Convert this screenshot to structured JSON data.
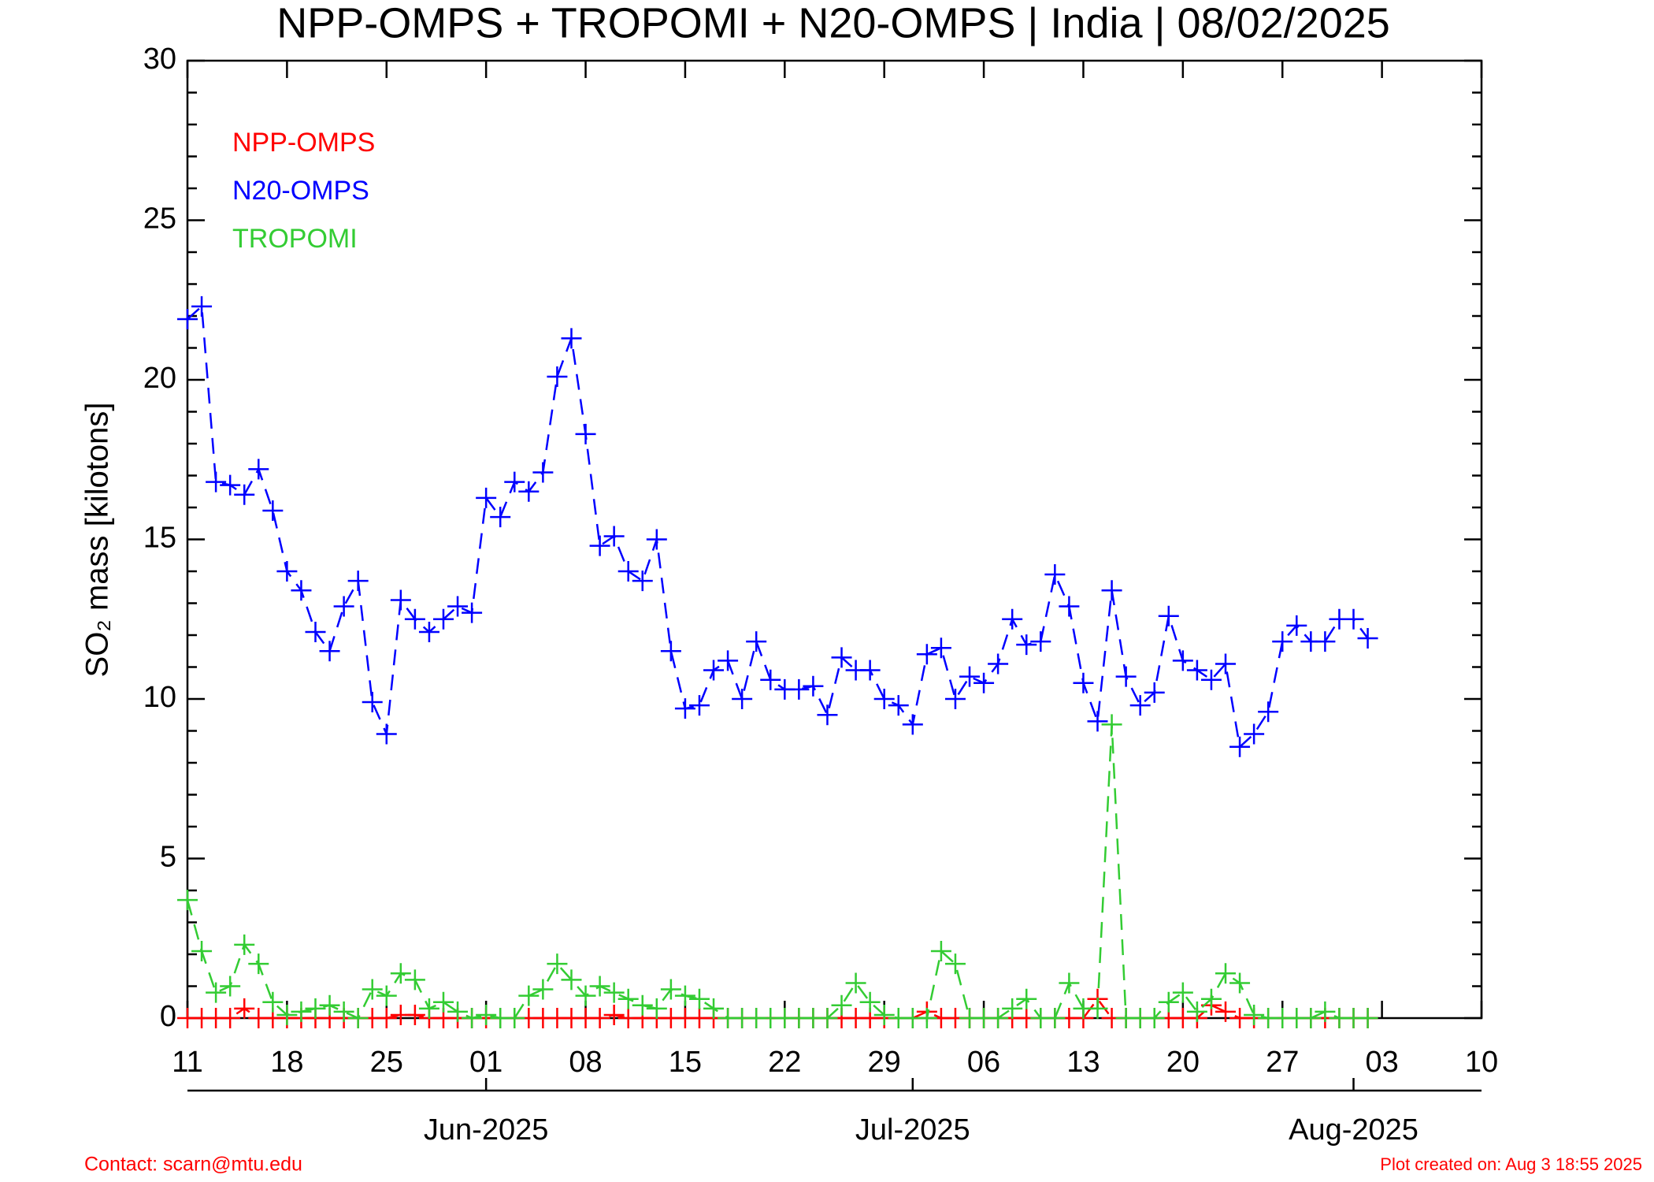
{
  "chart_data": {
    "type": "line",
    "title": "NPP-OMPS + TROPOMI + N20-OMPS | India | 08/02/2025",
    "y_label": "SO₂ mass [kilotons]",
    "x": [
      "2025-05-11",
      "2025-05-12",
      "2025-05-13",
      "2025-05-14",
      "2025-05-15",
      "2025-05-16",
      "2025-05-17",
      "2025-05-18",
      "2025-05-19",
      "2025-05-20",
      "2025-05-21",
      "2025-05-22",
      "2025-05-23",
      "2025-05-24",
      "2025-05-25",
      "2025-05-26",
      "2025-05-27",
      "2025-05-28",
      "2025-05-29",
      "2025-05-30",
      "2025-05-31",
      "2025-06-01",
      "2025-06-02",
      "2025-06-03",
      "2025-06-04",
      "2025-06-05",
      "2025-06-06",
      "2025-06-07",
      "2025-06-08",
      "2025-06-09",
      "2025-06-10",
      "2025-06-11",
      "2025-06-12",
      "2025-06-13",
      "2025-06-14",
      "2025-06-15",
      "2025-06-16",
      "2025-06-17",
      "2025-06-18",
      "2025-06-19",
      "2025-06-20",
      "2025-06-21",
      "2025-06-22",
      "2025-06-23",
      "2025-06-24",
      "2025-06-25",
      "2025-06-26",
      "2025-06-27",
      "2025-06-28",
      "2025-06-29",
      "2025-06-30",
      "2025-07-01",
      "2025-07-02",
      "2025-07-03",
      "2025-07-04",
      "2025-07-05",
      "2025-07-06",
      "2025-07-07",
      "2025-07-08",
      "2025-07-09",
      "2025-07-10",
      "2025-07-11",
      "2025-07-12",
      "2025-07-13",
      "2025-07-14",
      "2025-07-15",
      "2025-07-16",
      "2025-07-17",
      "2025-07-18",
      "2025-07-19",
      "2025-07-20",
      "2025-07-21",
      "2025-07-22",
      "2025-07-23",
      "2025-07-24",
      "2025-07-25",
      "2025-07-26",
      "2025-07-27",
      "2025-07-28",
      "2025-07-29",
      "2025-07-30",
      "2025-07-31",
      "2025-08-01",
      "2025-08-02"
    ],
    "series": [
      {
        "name": "NPP-OMPS",
        "color": "#ff0000",
        "values": [
          0,
          0,
          0,
          0,
          0.3,
          0,
          0,
          0,
          0,
          0,
          0,
          0,
          0,
          0,
          0,
          0.1,
          0.1,
          0,
          0,
          0,
          0,
          0,
          0,
          0,
          0,
          0,
          0,
          0,
          0,
          0,
          0.1,
          0,
          0,
          0,
          0,
          0,
          0,
          0,
          0,
          0,
          0,
          0,
          0,
          0,
          0,
          0,
          0,
          0,
          0,
          0,
          0,
          0,
          0.2,
          0,
          0,
          0,
          0,
          0,
          0,
          0,
          0,
          0,
          0,
          0,
          0.6,
          0,
          0,
          0,
          0,
          0,
          0,
          0,
          0.4,
          0.2,
          0,
          0,
          0,
          0,
          0,
          0,
          0,
          0,
          0,
          0
        ]
      },
      {
        "name": "N20-OMPS",
        "color": "#0000ff",
        "values": [
          21.9,
          22.3,
          16.8,
          16.7,
          16.4,
          17.2,
          15.9,
          14.0,
          13.4,
          12.1,
          11.5,
          12.9,
          13.7,
          9.9,
          8.9,
          13.1,
          12.5,
          12.1,
          12.5,
          12.9,
          12.7,
          16.3,
          15.7,
          16.8,
          16.5,
          17.1,
          20.1,
          21.3,
          18.3,
          14.8,
          15.1,
          14.0,
          13.7,
          15.0,
          11.5,
          9.7,
          9.8,
          10.9,
          11.2,
          10.0,
          11.8,
          10.6,
          10.3,
          10.3,
          10.4,
          9.5,
          11.3,
          10.9,
          10.9,
          10.0,
          9.8,
          9.2,
          11.4,
          11.6,
          10.0,
          10.7,
          10.5,
          11.1,
          12.5,
          11.7,
          11.8,
          13.9,
          12.9,
          10.5,
          9.3,
          13.4,
          10.7,
          9.8,
          10.2,
          12.6,
          11.2,
          10.9,
          10.6,
          11.1,
          8.5,
          8.9,
          9.6,
          11.8,
          12.3,
          11.8,
          11.8,
          12.5,
          12.5,
          11.9
        ]
      },
      {
        "name": "TROPOMI",
        "color": "#33cc33",
        "values": [
          3.7,
          2.1,
          0.8,
          1.0,
          2.3,
          1.7,
          0.5,
          0.1,
          0.2,
          0.3,
          0.4,
          0.2,
          0.0,
          0.9,
          0.7,
          1.4,
          1.2,
          0.3,
          0.5,
          0.2,
          0.0,
          0.1,
          0.0,
          0.0,
          0.7,
          0.9,
          1.7,
          1.2,
          0.7,
          1.0,
          0.8,
          0.6,
          0.4,
          0.3,
          0.9,
          0.7,
          0.6,
          0.3,
          0.0,
          0.0,
          0.0,
          0.0,
          0.0,
          0.0,
          0.0,
          0.0,
          0.4,
          1.1,
          0.5,
          0.1,
          0.0,
          0.0,
          0.0,
          2.1,
          1.7,
          0.0,
          0.0,
          0.0,
          0.3,
          0.6,
          0.0,
          0.0,
          1.1,
          0.3,
          0.3,
          9.2,
          0.0,
          0.0,
          0.0,
          0.5,
          0.8,
          0.2,
          0.6,
          1.4,
          1.1,
          0.1,
          0.0,
          0.0,
          0.0,
          0.0,
          0.2,
          0.0,
          0.0,
          0.0
        ]
      }
    ],
    "xlim": [
      "2025-05-11",
      "2025-08-10"
    ],
    "xticks": [
      {
        "value": "2025-05-11",
        "label": "11"
      },
      {
        "value": "2025-05-18",
        "label": "18"
      },
      {
        "value": "2025-05-25",
        "label": "25"
      },
      {
        "value": "2025-06-01",
        "label": "01"
      },
      {
        "value": "2025-06-08",
        "label": "08"
      },
      {
        "value": "2025-06-15",
        "label": "15"
      },
      {
        "value": "2025-06-22",
        "label": "22"
      },
      {
        "value": "2025-06-29",
        "label": "29"
      },
      {
        "value": "2025-07-06",
        "label": "06"
      },
      {
        "value": "2025-07-13",
        "label": "13"
      },
      {
        "value": "2025-07-20",
        "label": "20"
      },
      {
        "value": "2025-07-27",
        "label": "27"
      },
      {
        "value": "2025-08-03",
        "label": "03"
      },
      {
        "value": "2025-08-10",
        "label": "10"
      }
    ],
    "month_ticks": [
      {
        "value": "2025-06-01",
        "label": "Jun-2025"
      },
      {
        "value": "2025-07-01",
        "label": "Jul-2025"
      },
      {
        "value": "2025-08-01",
        "label": "Aug-2025"
      }
    ],
    "ylim": [
      0,
      30
    ],
    "yticks": [
      0,
      5,
      10,
      15,
      20,
      25,
      30
    ],
    "contact": "Contact: scarn@mtu.edu",
    "created": "Plot created on: Aug  3 18:55 2025"
  }
}
